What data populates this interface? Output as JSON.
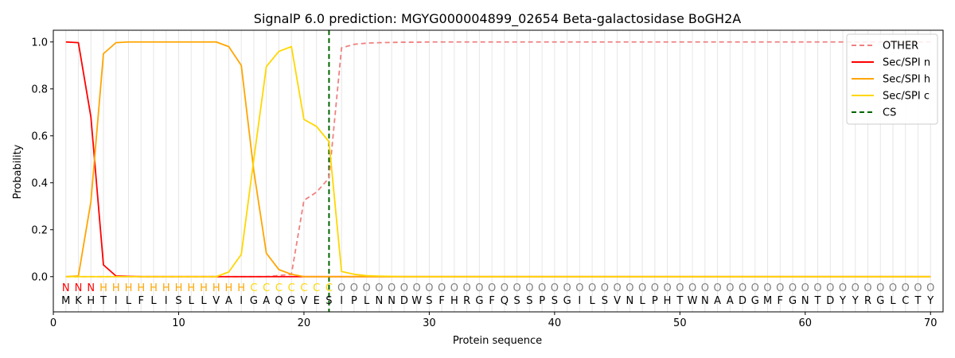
{
  "chart_data": {
    "type": "line",
    "title": "SignalP 6.0 prediction: MGYG000004899_02654 Beta-galactosidase BoGH2A",
    "xlabel": "Protein sequence",
    "ylabel": "Probability",
    "xlim": [
      0,
      71
    ],
    "ylim": [
      -0.15,
      1.05
    ],
    "xticks": [
      0,
      10,
      20,
      30,
      40,
      50,
      60,
      70
    ],
    "yticks": [
      0.0,
      0.2,
      0.4,
      0.6,
      0.8,
      1.0
    ],
    "xtick_labels": [
      "0",
      "10",
      "20",
      "30",
      "40",
      "50",
      "60",
      "70"
    ],
    "ytick_labels": [
      "0.0",
      "0.2",
      "0.4",
      "0.6",
      "0.8",
      "1.0"
    ],
    "grid": "vertical lines at each residue",
    "legend_position": "top-right",
    "sequence": [
      "M",
      "K",
      "H",
      "T",
      "I",
      "L",
      "F",
      "L",
      "I",
      "S",
      "L",
      "L",
      "V",
      "A",
      "I",
      "G",
      "A",
      "Q",
      "G",
      "V",
      "E",
      "S",
      "I",
      "P",
      "L",
      "N",
      "N",
      "D",
      "W",
      "S",
      "F",
      "H",
      "R",
      "G",
      "F",
      "Q",
      "S",
      "S",
      "P",
      "S",
      "G",
      "I",
      "L",
      "S",
      "V",
      "N",
      "L",
      "P",
      "H",
      "T",
      "W",
      "N",
      "A",
      "A",
      "D",
      "G",
      "M",
      "F",
      "G",
      "N",
      "T",
      "D",
      "Y",
      "Y",
      "R",
      "G",
      "L",
      "C",
      "T",
      "Y"
    ],
    "region_labels": [
      "N",
      "N",
      "N",
      "H",
      "H",
      "H",
      "H",
      "H",
      "H",
      "H",
      "H",
      "H",
      "H",
      "H",
      "H",
      "C",
      "C",
      "C",
      "C",
      "C",
      "C",
      "C",
      "O",
      "O",
      "O",
      "O",
      "O",
      "O",
      "O",
      "O",
      "O",
      "O",
      "O",
      "O",
      "O",
      "O",
      "O",
      "O",
      "O",
      "O",
      "O",
      "O",
      "O",
      "O",
      "O",
      "O",
      "O",
      "O",
      "O",
      "O",
      "O",
      "O",
      "O",
      "O",
      "O",
      "O",
      "O",
      "O",
      "O",
      "O",
      "O",
      "O",
      "O",
      "O",
      "O",
      "O",
      "O",
      "O",
      "O",
      "O"
    ],
    "region_colors": {
      "N": "#ff0000",
      "H": "#ffa500",
      "C": "#ffd700",
      "O": "#808080"
    },
    "series": [
      {
        "name": "OTHER",
        "color": "#f08080",
        "style": "dashed",
        "values": [
          0.0,
          0.0,
          0.0,
          0.0,
          0.0,
          0.0,
          0.0,
          0.0,
          0.0,
          0.0,
          0.0,
          0.0,
          0.0,
          0.0,
          0.0,
          0.0,
          0.0,
          0.005,
          0.01,
          0.325,
          0.36,
          0.42,
          0.975,
          0.99,
          0.995,
          0.997,
          0.998,
          0.999,
          0.999,
          1.0,
          1.0,
          1.0,
          1.0,
          1.0,
          1.0,
          1.0,
          1.0,
          1.0,
          1.0,
          1.0,
          1.0,
          1.0,
          1.0,
          1.0,
          1.0,
          1.0,
          1.0,
          1.0,
          1.0,
          1.0,
          1.0,
          1.0,
          1.0,
          1.0,
          1.0,
          1.0,
          1.0,
          1.0,
          1.0,
          1.0,
          1.0,
          1.0,
          1.0,
          1.0,
          1.0,
          1.0,
          1.0,
          1.0,
          1.0,
          1.0
        ]
      },
      {
        "name": "Sec/SPI n",
        "color": "#ff0000",
        "style": "solid",
        "values": [
          1.0,
          0.997,
          0.68,
          0.05,
          0.003,
          0.001,
          0.0,
          0.0,
          0.0,
          0.0,
          0.0,
          0.0,
          0.0,
          0.0,
          0.0,
          0.0,
          0.0,
          0.0,
          0.0,
          0.0,
          0.0,
          0.0,
          0.0,
          0.0,
          0.0,
          0.0,
          0.0,
          0.0,
          0.0,
          0.0,
          0.0,
          0.0,
          0.0,
          0.0,
          0.0,
          0.0,
          0.0,
          0.0,
          0.0,
          0.0,
          0.0,
          0.0,
          0.0,
          0.0,
          0.0,
          0.0,
          0.0,
          0.0,
          0.0,
          0.0,
          0.0,
          0.0,
          0.0,
          0.0,
          0.0,
          0.0,
          0.0,
          0.0,
          0.0,
          0.0,
          0.0,
          0.0,
          0.0,
          0.0,
          0.0,
          0.0,
          0.0,
          0.0,
          0.0,
          0.0
        ]
      },
      {
        "name": "Sec/SPI h",
        "color": "#ffa500",
        "style": "solid",
        "values": [
          0.0,
          0.003,
          0.32,
          0.95,
          0.997,
          1.0,
          1.0,
          1.0,
          1.0,
          1.0,
          1.0,
          1.0,
          1.0,
          0.98,
          0.9,
          0.45,
          0.1,
          0.03,
          0.01,
          0.0,
          0.0,
          0.0,
          0.0,
          0.0,
          0.0,
          0.0,
          0.0,
          0.0,
          0.0,
          0.0,
          0.0,
          0.0,
          0.0,
          0.0,
          0.0,
          0.0,
          0.0,
          0.0,
          0.0,
          0.0,
          0.0,
          0.0,
          0.0,
          0.0,
          0.0,
          0.0,
          0.0,
          0.0,
          0.0,
          0.0,
          0.0,
          0.0,
          0.0,
          0.0,
          0.0,
          0.0,
          0.0,
          0.0,
          0.0,
          0.0,
          0.0,
          0.0,
          0.0,
          0.0,
          0.0,
          0.0,
          0.0,
          0.0,
          0.0,
          0.0
        ]
      },
      {
        "name": "Sec/SPI c",
        "color": "#ffd700",
        "style": "solid",
        "values": [
          0.0,
          0.0,
          0.0,
          0.0,
          0.0,
          0.0,
          0.0,
          0.0,
          0.0,
          0.0,
          0.0,
          0.0,
          0.0,
          0.02,
          0.095,
          0.5,
          0.895,
          0.96,
          0.98,
          0.67,
          0.64,
          0.575,
          0.022,
          0.01,
          0.004,
          0.002,
          0.001,
          0.0,
          0.0,
          0.0,
          0.0,
          0.0,
          0.0,
          0.0,
          0.0,
          0.0,
          0.0,
          0.0,
          0.0,
          0.0,
          0.0,
          0.0,
          0.0,
          0.0,
          0.0,
          0.0,
          0.0,
          0.0,
          0.0,
          0.0,
          0.0,
          0.0,
          0.0,
          0.0,
          0.0,
          0.0,
          0.0,
          0.0,
          0.0,
          0.0,
          0.0,
          0.0,
          0.0,
          0.0,
          0.0,
          0.0,
          0.0,
          0.0,
          0.0,
          0.0
        ]
      }
    ],
    "cleavage_site": {
      "name": "CS",
      "x": 22,
      "color": "#006400",
      "style": "dashed"
    }
  }
}
